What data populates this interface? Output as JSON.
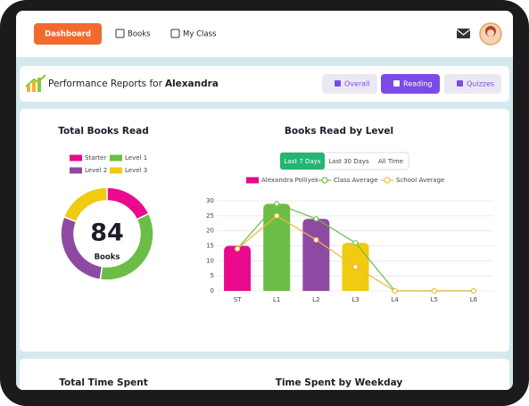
{
  "nav": {
    "items": [
      "Dashboard",
      "Books",
      "My Class"
    ],
    "active": 0
  },
  "header": {
    "title": "Performance Reports for",
    "student": "Alexandra",
    "tabs": [
      "Overall",
      "Reading",
      "Quizzes"
    ],
    "active_tab": 1
  },
  "donut": {
    "title": "Total Books Read",
    "names": [
      "Starter",
      "Level 1",
      "Level 2",
      "Level 3"
    ],
    "colors": [
      "#ea0a8c",
      "#6cbd45",
      "#8e4aa3",
      "#f0cb0f"
    ],
    "values": [
      15,
      29,
      24,
      16
    ],
    "total": 84,
    "total_label": "Books"
  },
  "level_chart": {
    "title": "Books Read by Level",
    "filters": [
      "Last 7 Days",
      "Last 30 Days",
      "All Time"
    ],
    "active_filter": 0,
    "categories": [
      "ST",
      "L1",
      "L2",
      "L3",
      "L4",
      "L5",
      "L6"
    ],
    "ylim": [
      0,
      30
    ],
    "yticks": [
      0,
      5,
      10,
      15,
      20,
      25,
      30
    ],
    "grid": true,
    "series": [
      {
        "name": "Alexandra Polliyek",
        "type": "bar",
        "color": "#ea0a8c",
        "colors": [
          "#ea0a8c",
          "#6cbd45",
          "#8e4aa3",
          "#f0cb0f",
          "#ea0a8c",
          "#6cbd45",
          "#8e4aa3"
        ],
        "values": [
          15,
          29,
          24,
          16,
          0,
          0,
          0
        ]
      },
      {
        "name": "Class Average",
        "type": "line",
        "color": "#6cbd45",
        "values": [
          14,
          29,
          24,
          16,
          0,
          0,
          0
        ]
      },
      {
        "name": "School Average",
        "type": "line",
        "color": "#f5b83d",
        "values": [
          14,
          25,
          17,
          8,
          0,
          0,
          0
        ]
      }
    ]
  },
  "bottom": {
    "left_title": "Total Time Spent",
    "right_title": "Time Spent by Weekday"
  }
}
